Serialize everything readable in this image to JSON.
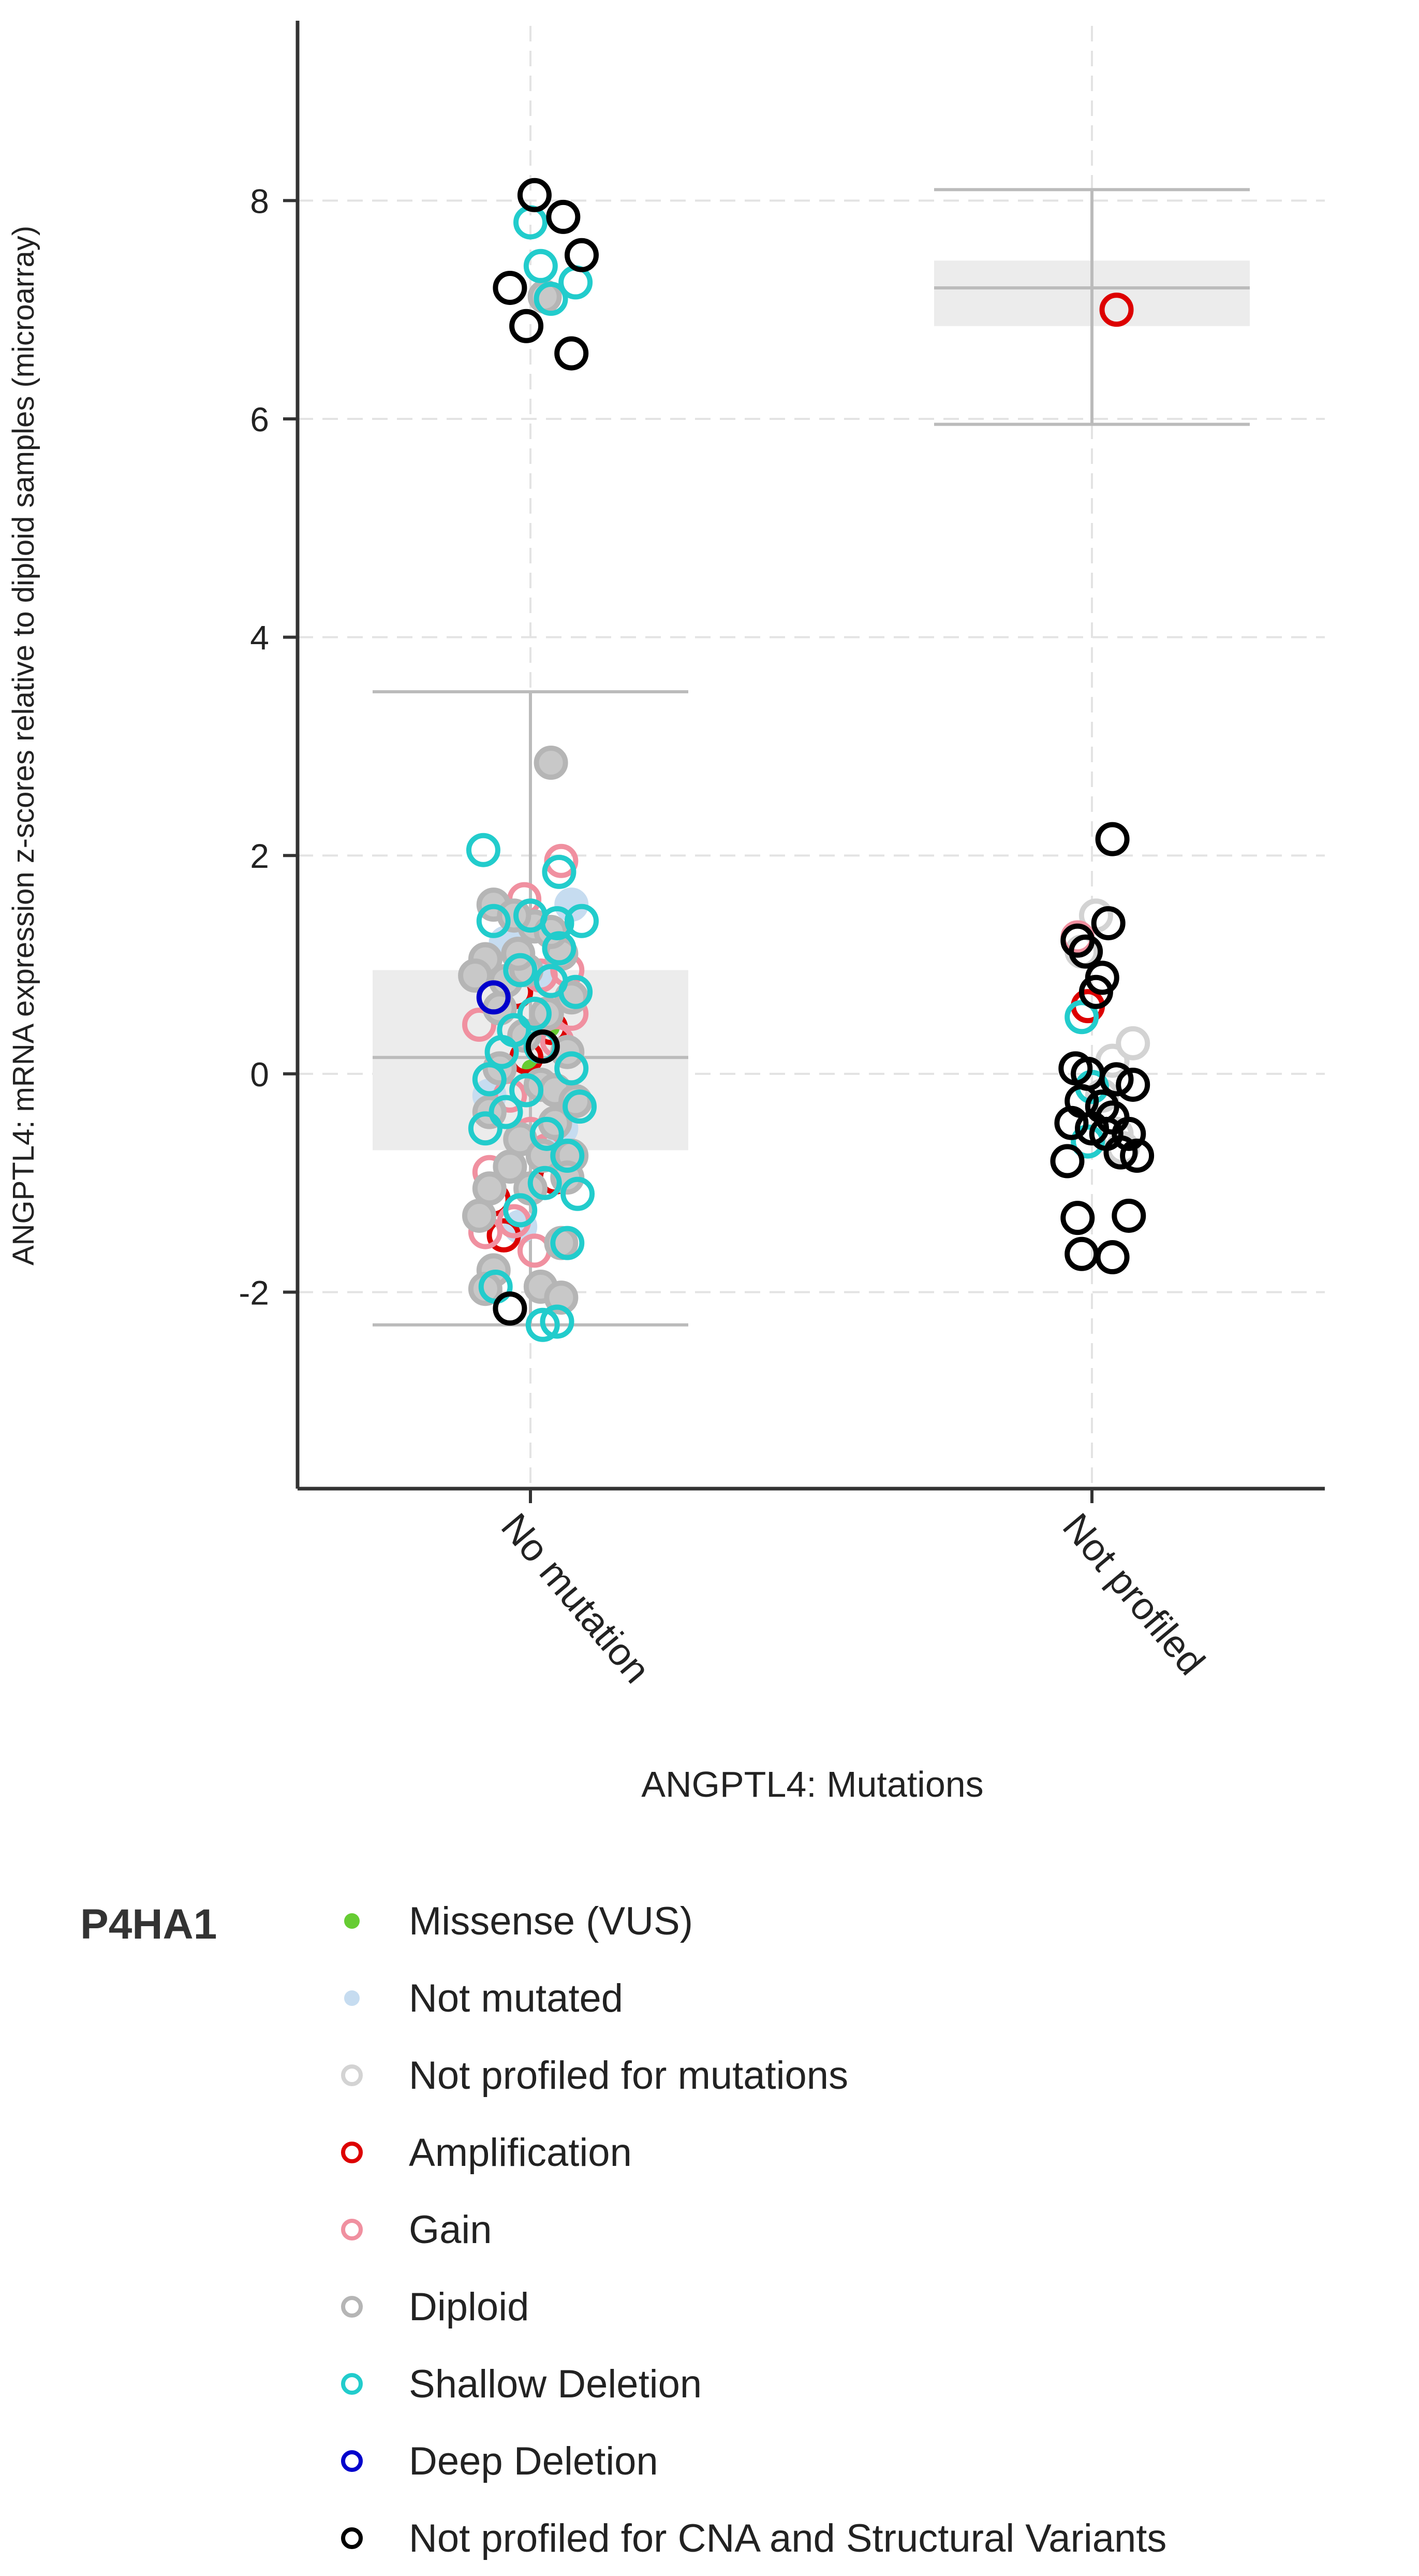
{
  "chart_data": {
    "type": "scatter",
    "subtype": "box-and-jitter",
    "ylabel": "ANGPTL4: mRNA expression z-scores relative to diploid samples (microarray)",
    "xlabel": "ANGPTL4: Mutations",
    "categories": [
      "No mutation",
      "Not profiled"
    ],
    "ylim": [
      -3.8,
      9.6
    ],
    "yticks": [
      -2,
      0,
      2,
      4,
      6,
      8
    ],
    "ytick_labels": [
      "-2",
      "0",
      "2",
      "4",
      "6",
      "8"
    ],
    "grid": true,
    "boxes": [
      {
        "category": "No mutation",
        "whisker_low": -2.3,
        "q1": -0.7,
        "median": 0.15,
        "q3": 0.95,
        "whisker_high": 3.5
      },
      {
        "category": "Not profiled",
        "whisker_low": 5.95,
        "q1": 6.85,
        "median": 7.2,
        "q3": 7.45,
        "whisker_high": 8.1
      }
    ],
    "series": [
      {
        "name": "Missense (VUS)",
        "key": "missense",
        "fill": "#66cc33",
        "stroke": "#66cc33",
        "points": [
          [
            0.0,
            0.05
          ],
          [
            0.1,
            0.42
          ]
        ]
      },
      {
        "name": "Not mutated",
        "key": "notmut",
        "fill": "#c6dcf0",
        "stroke": "#c6dcf0",
        "points": [
          [
            -0.12,
            1.2
          ],
          [
            0.05,
            0.9
          ],
          [
            0.15,
            -0.5
          ],
          [
            -0.05,
            -1.4
          ],
          [
            0.2,
            1.55
          ],
          [
            -0.2,
            -0.2
          ]
        ]
      },
      {
        "name": "Not profiled for mutations",
        "key": "notprof",
        "fill": "#ffffff",
        "stroke": "#d3d3d3",
        "points": [
          [
            1.02,
            1.45
          ],
          [
            1.1,
            0.12
          ],
          [
            1.2,
            0.28
          ],
          [
            0.95,
            1.12
          ],
          [
            1.12,
            -0.55
          ],
          [
            1.05,
            -0.2
          ],
          [
            1.15,
            -0.68
          ]
        ]
      },
      {
        "name": "Amplification",
        "key": "amp",
        "fill": "none",
        "stroke": "#dd0000",
        "points": [
          [
            -0.07,
            0.75
          ],
          [
            -0.02,
            0.15
          ],
          [
            0.1,
            0.42
          ],
          [
            0.12,
            -0.95
          ],
          [
            -0.18,
            -1.15
          ],
          [
            -0.13,
            -1.48
          ],
          [
            1.12,
            7.0
          ],
          [
            0.98,
            0.62
          ]
        ]
      },
      {
        "name": "Gain",
        "key": "gain",
        "fill": "none",
        "stroke": "#f090a0",
        "points": [
          [
            0.15,
            1.95
          ],
          [
            -0.03,
            1.6
          ],
          [
            -0.25,
            0.45
          ],
          [
            0.05,
            0.9
          ],
          [
            0.2,
            0.55
          ],
          [
            -0.2,
            -0.9
          ],
          [
            0.0,
            -0.55
          ],
          [
            -0.1,
            -0.2
          ],
          [
            0.08,
            -0.7
          ],
          [
            -0.22,
            -1.45
          ],
          [
            0.02,
            -1.62
          ],
          [
            0.18,
            0.95
          ],
          [
            0.13,
            0.3
          ],
          [
            -0.08,
            -1.35
          ],
          [
            0.93,
            1.25
          ]
        ]
      },
      {
        "name": "Diploid",
        "key": "diploid",
        "fill": "#c8c8c8",
        "stroke": "#b5b5b5",
        "points": [
          [
            0.07,
            7.12
          ],
          [
            0.1,
            2.85
          ],
          [
            -0.18,
            1.55
          ],
          [
            0.02,
            1.35
          ],
          [
            0.15,
            1.1
          ],
          [
            -0.22,
            1.05
          ],
          [
            -0.12,
            0.85
          ],
          [
            0.08,
            0.55
          ],
          [
            -0.03,
            0.35
          ],
          [
            0.18,
            0.2
          ],
          [
            -0.15,
            0.05
          ],
          [
            0.05,
            -0.1
          ],
          [
            -0.2,
            -0.35
          ],
          [
            0.12,
            -0.45
          ],
          [
            -0.05,
            -0.6
          ],
          [
            0.2,
            -0.75
          ],
          [
            -0.1,
            -0.85
          ],
          [
            0.0,
            -1.05
          ],
          [
            -0.25,
            -1.3
          ],
          [
            0.15,
            -1.55
          ],
          [
            -0.18,
            -1.8
          ],
          [
            0.05,
            -1.95
          ],
          [
            -0.22,
            -1.97
          ],
          [
            0.15,
            -2.05
          ],
          [
            -0.08,
            1.45
          ],
          [
            0.2,
            0.7
          ],
          [
            -0.27,
            0.9
          ],
          [
            0.12,
            -0.15
          ],
          [
            -0.02,
            0.95
          ],
          [
            0.22,
            -0.25
          ],
          [
            -0.15,
            0.6
          ],
          [
            0.06,
            -0.75
          ],
          [
            -0.2,
            -1.05
          ],
          [
            0.18,
            -0.95
          ],
          [
            0.1,
            1.3
          ],
          [
            -0.06,
            1.1
          ]
        ]
      },
      {
        "name": "Shallow Deletion",
        "key": "shallow",
        "fill": "none",
        "stroke": "#22cccc",
        "points": [
          [
            -0.23,
            2.05
          ],
          [
            0.14,
            1.85
          ],
          [
            -0.18,
            1.4
          ],
          [
            0.0,
            1.45
          ],
          [
            0.25,
            1.4
          ],
          [
            0.14,
            1.15
          ],
          [
            -0.05,
            0.95
          ],
          [
            0.1,
            0.85
          ],
          [
            0.22,
            0.75
          ],
          [
            0.02,
            0.55
          ],
          [
            -0.14,
            0.2
          ],
          [
            0.2,
            0.05
          ],
          [
            -0.2,
            -0.05
          ],
          [
            -0.02,
            -0.15
          ],
          [
            0.24,
            -0.3
          ],
          [
            -0.12,
            -0.35
          ],
          [
            -0.22,
            -0.5
          ],
          [
            0.08,
            -0.55
          ],
          [
            0.18,
            -0.75
          ],
          [
            0.07,
            -1.0
          ],
          [
            -0.05,
            -1.25
          ],
          [
            0.18,
            -1.55
          ],
          [
            -0.17,
            -1.95
          ],
          [
            0.06,
            -2.3
          ],
          [
            0.13,
            -2.27
          ],
          [
            -0.08,
            0.4
          ],
          [
            0.05,
            0.25
          ],
          [
            0.23,
            -1.1
          ],
          [
            0.13,
            1.38
          ],
          [
            0.0,
            7.8
          ],
          [
            0.05,
            7.4
          ],
          [
            0.1,
            7.1
          ],
          [
            0.22,
            7.25
          ],
          [
            0.95,
            0.52
          ],
          [
            1.0,
            -0.12
          ],
          [
            0.98,
            -0.62
          ]
        ]
      },
      {
        "name": "Deep Deletion",
        "key": "deep",
        "fill": "none",
        "stroke": "#0000cc",
        "points": [
          [
            -0.18,
            0.7
          ]
        ]
      },
      {
        "name": "Not profiled for CNA and Structural Variants",
        "key": "nocna",
        "fill": "none",
        "stroke": "#000000",
        "points": [
          [
            -0.1,
            -2.15
          ],
          [
            0.06,
            0.25
          ],
          [
            0.02,
            8.05
          ],
          [
            0.16,
            7.85
          ],
          [
            0.25,
            7.5
          ],
          [
            -0.02,
            6.85
          ],
          [
            0.2,
            6.6
          ],
          [
            -0.1,
            7.2
          ],
          [
            1.1,
            2.15
          ],
          [
            0.93,
            1.22
          ],
          [
            1.08,
            1.38
          ],
          [
            0.97,
            1.12
          ],
          [
            1.05,
            0.88
          ],
          [
            1.02,
            0.75
          ],
          [
            0.92,
            0.05
          ],
          [
            0.98,
            0.0
          ],
          [
            1.12,
            -0.05
          ],
          [
            1.2,
            -0.1
          ],
          [
            0.95,
            -0.25
          ],
          [
            1.05,
            -0.3
          ],
          [
            0.9,
            -0.45
          ],
          [
            1.0,
            -0.5
          ],
          [
            1.1,
            -0.4
          ],
          [
            1.18,
            -0.55
          ],
          [
            1.22,
            -0.75
          ],
          [
            0.88,
            -0.8
          ],
          [
            1.14,
            -0.72
          ],
          [
            0.93,
            -1.32
          ],
          [
            1.18,
            -1.3
          ],
          [
            0.95,
            -1.65
          ],
          [
            1.1,
            -1.68
          ],
          [
            1.07,
            -0.55
          ]
        ]
      }
    ],
    "legend": {
      "position": "bottom-left",
      "title": "P4HA1",
      "items": [
        {
          "label": "Missense (VUS)",
          "style": "dot",
          "color": "#66cc33"
        },
        {
          "label": "Not mutated",
          "style": "dot",
          "color": "#c6dcf0"
        },
        {
          "label": "Not profiled for mutations",
          "style": "ring",
          "color": "#d3d3d3"
        },
        {
          "label": "Amplification",
          "style": "ring",
          "color": "#dd0000"
        },
        {
          "label": "Gain",
          "style": "ring",
          "color": "#f090a0"
        },
        {
          "label": "Diploid",
          "style": "ring",
          "color": "#b5b5b5"
        },
        {
          "label": "Shallow Deletion",
          "style": "ring",
          "color": "#22cccc"
        },
        {
          "label": "Deep Deletion",
          "style": "ring",
          "color": "#0000cc"
        },
        {
          "label": "Not profiled for CNA and Structural Variants",
          "style": "ring",
          "color": "#000000"
        }
      ]
    },
    "colors": {
      "axis": "#333333",
      "grid": "#e3e3e3",
      "box_fill": "#ececec",
      "box_line": "#bbbbbb"
    }
  }
}
